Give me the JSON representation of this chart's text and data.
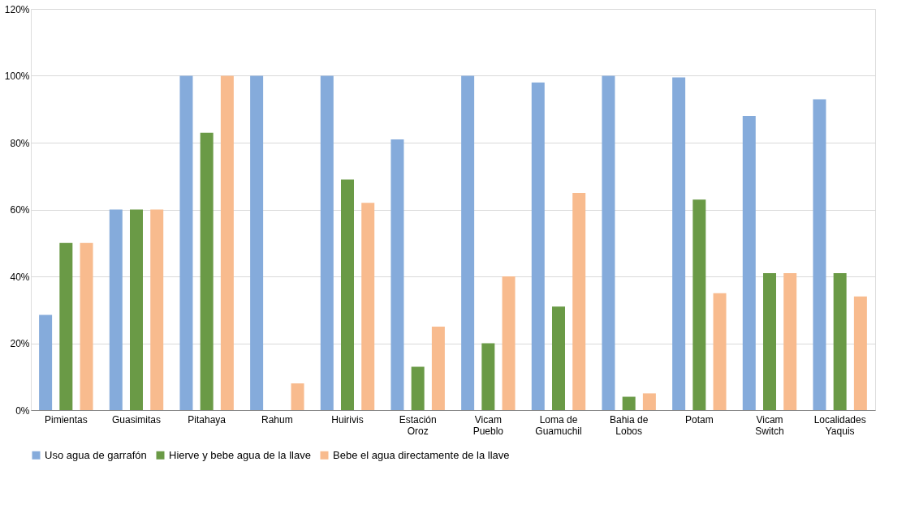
{
  "chart_data": {
    "type": "bar",
    "categories": [
      "Pimientas",
      "Guasimitas",
      "Pitahaya",
      "Rahum",
      "Huirivis",
      "Estación\nOroz",
      "Vicam\nPueblo",
      "Loma de\nGuamuchil",
      "Bahia de\nLobos",
      "Potam",
      "Vicam\nSwitch",
      "Localidades\nYaquis"
    ],
    "series": [
      {
        "name": "Uso agua de garrafón",
        "color": "#85abdb",
        "values": [
          28.5,
          60,
          100,
          100,
          100,
          81,
          100,
          98,
          100,
          99.5,
          88,
          93
        ]
      },
      {
        "name": "Hierve y bebe agua de la llave",
        "color": "#6a9a46",
        "values": [
          50,
          60,
          83,
          0,
          69,
          13,
          20,
          31,
          4,
          63,
          41,
          41
        ]
      },
      {
        "name": "Bebe el agua directamente de la llave",
        "color": "#f8bb8e",
        "values": [
          50,
          60,
          100,
          8,
          62,
          25,
          40,
          65,
          5,
          35,
          41,
          34
        ]
      }
    ],
    "ylim": [
      0,
      120
    ],
    "yticks": [
      {
        "value": 0,
        "label": "0%"
      },
      {
        "value": 20,
        "label": "20%"
      },
      {
        "value": 40,
        "label": "40%"
      },
      {
        "value": 60,
        "label": "60%"
      },
      {
        "value": 80,
        "label": "80%"
      },
      {
        "value": 100,
        "label": "100%"
      },
      {
        "value": 120,
        "label": "120%"
      }
    ],
    "grid": "y",
    "legend": "bottom"
  }
}
